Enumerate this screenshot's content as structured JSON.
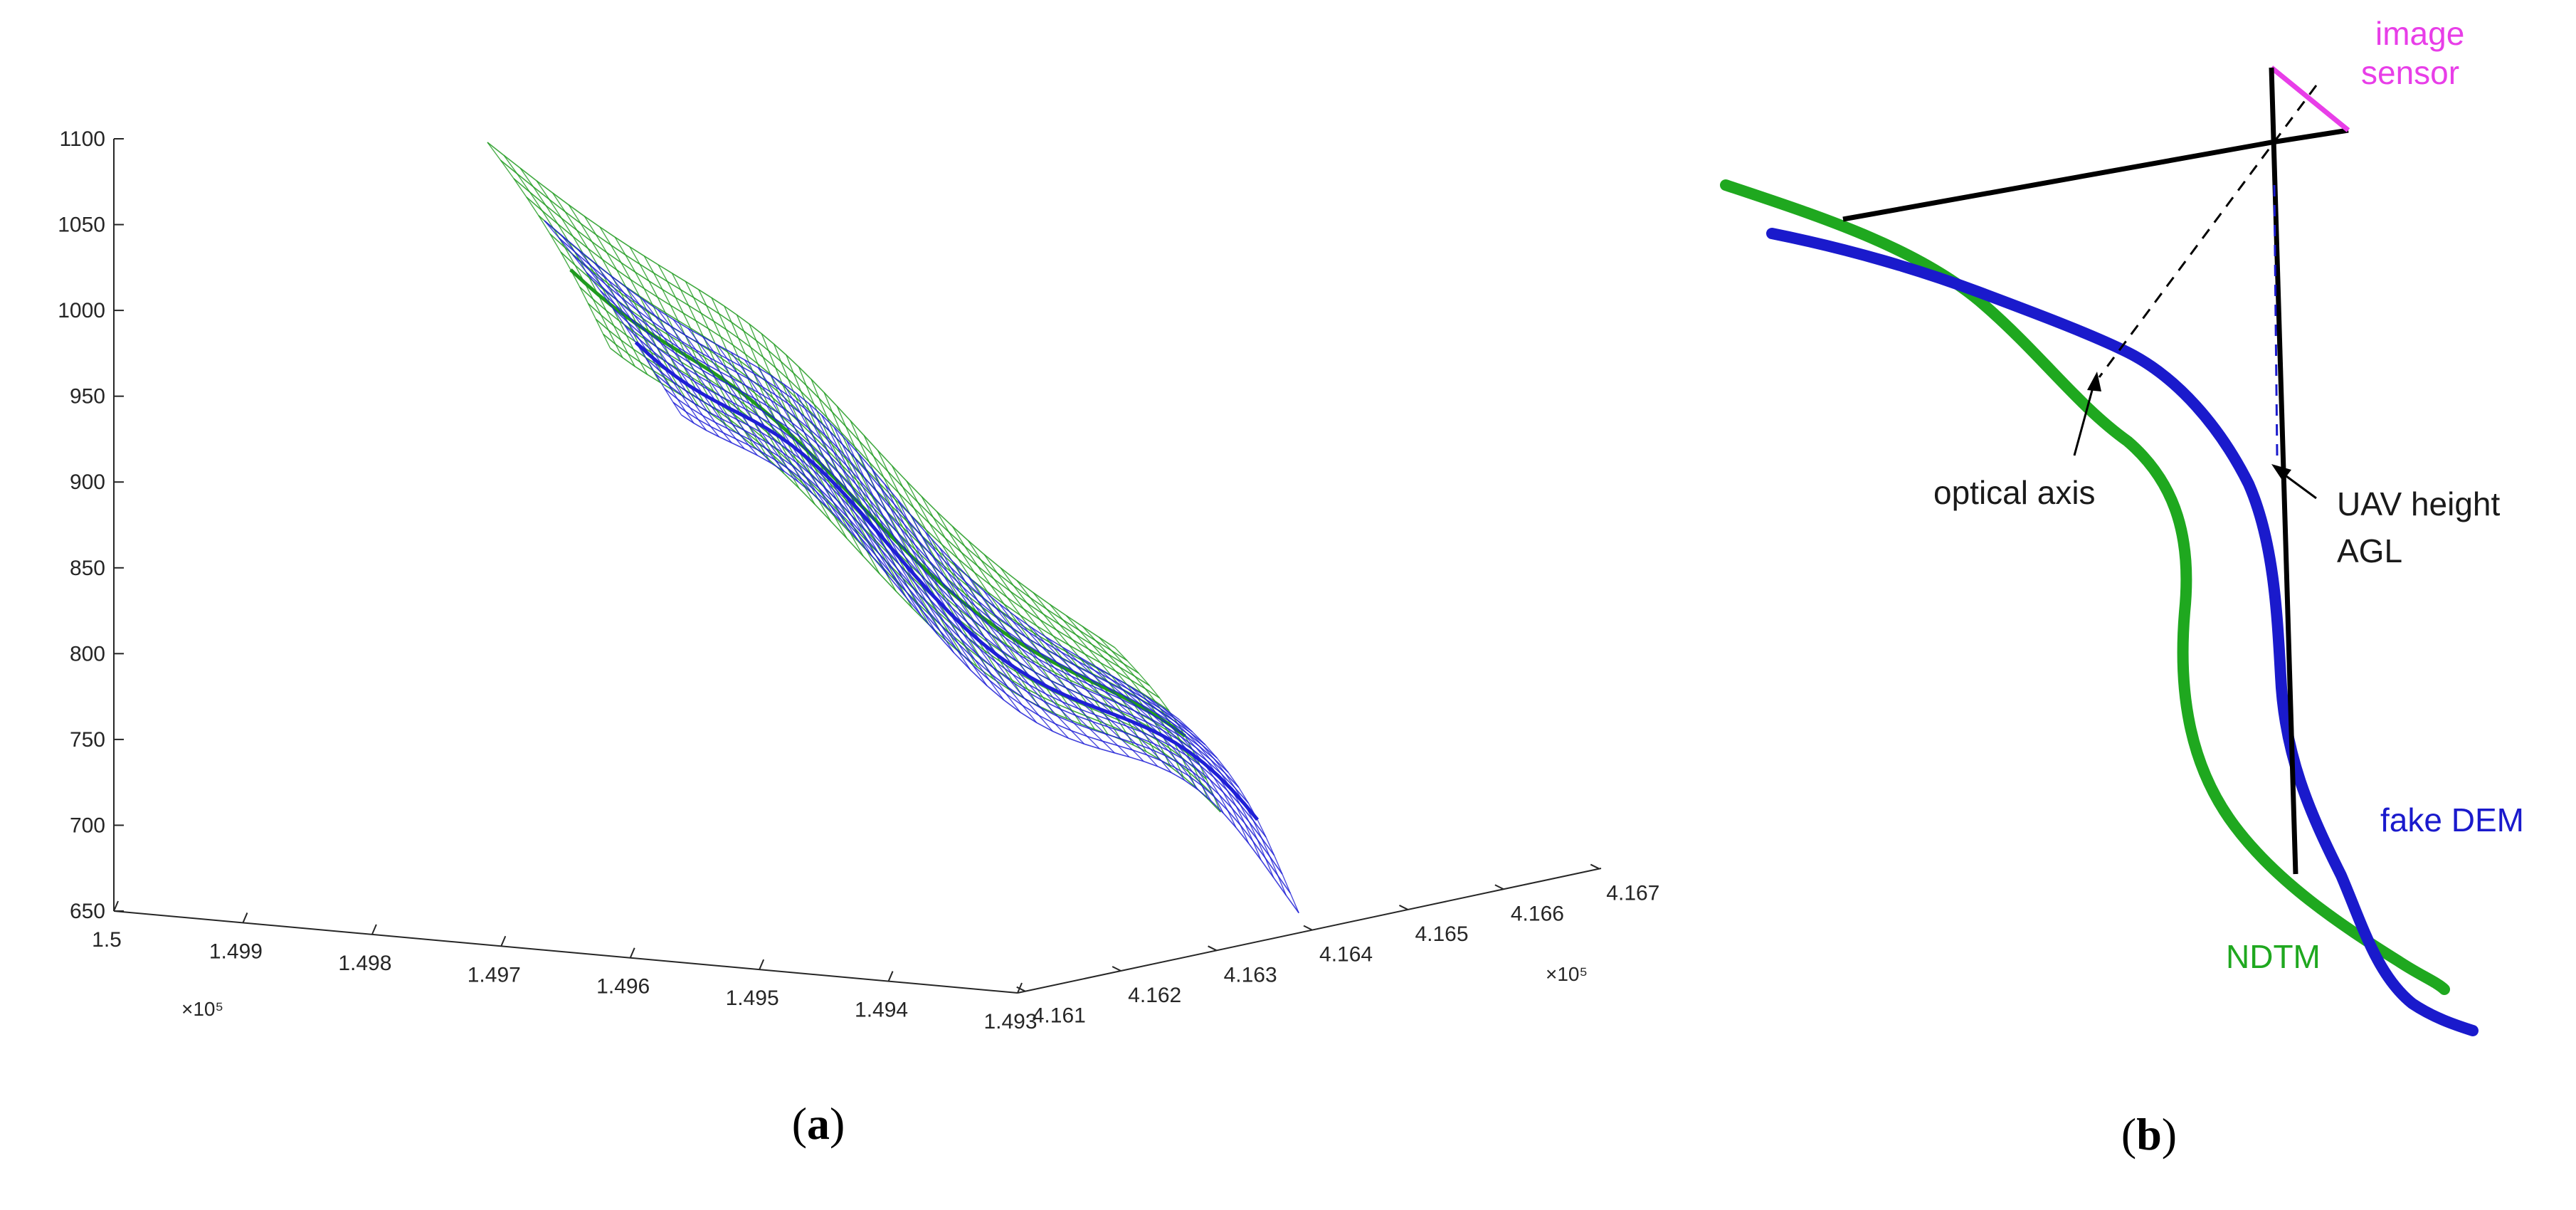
{
  "chart_data": [
    {
      "type": "surface3d",
      "panel_label": "(a)",
      "panel_label_parts": {
        "open": "(",
        "letter": "a",
        "close": ")"
      },
      "zlim": [
        650,
        1100
      ],
      "z_ticks": [
        "650",
        "700",
        "750",
        "800",
        "850",
        "900",
        "950",
        "1000",
        "1050",
        "1100"
      ],
      "x_ticks": [
        "1.5",
        "1.499",
        "1.498",
        "1.497",
        "1.496",
        "1.495",
        "1.494",
        "1.493"
      ],
      "x_multiplier": "×10⁵",
      "y_ticks": [
        "4.161",
        "4.162",
        "4.163",
        "4.164",
        "4.165",
        "4.166",
        "4.167"
      ],
      "y_multiplier": "×10⁵",
      "series": [
        {
          "color": "#1f9a1f"
        },
        {
          "color": "#1f1fd6"
        }
      ]
    },
    {
      "type": "diagram",
      "panel_label": "(b)",
      "panel_label_parts": {
        "open": "(",
        "letter": "b",
        "close": ")"
      },
      "labels": {
        "image_sensor_1": "image",
        "image_sensor_2": "sensor",
        "optical_axis": "optical axis",
        "uav_height_1": "UAV height",
        "uav_height_2": "AGL",
        "fake_dem": "fake DEM",
        "ndtm": "NDTM"
      },
      "colors": {
        "ndtm": "#1fa81f",
        "fake_dem": "#1a1acc",
        "sensor": "#e83ee8",
        "lines": "#000000"
      }
    }
  ]
}
